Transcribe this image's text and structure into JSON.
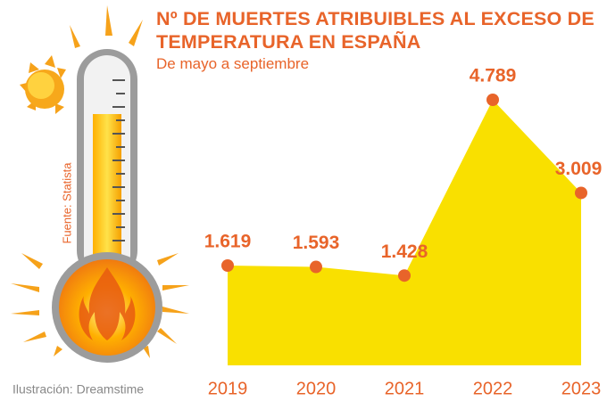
{
  "chart_data": {
    "type": "area",
    "title": "Nº DE MUERTES ATRIBUIBLES AL EXCESO DE TEMPERATURA EN ESPAÑA",
    "subtitle": "De mayo a septiembre",
    "source": "Fuente: Statista",
    "credit": "Ilustración: Dreamstime",
    "categories": [
      "2019",
      "2020",
      "2021",
      "2022",
      "2023"
    ],
    "values": [
      1619,
      1593,
      1428,
      4789,
      3009
    ],
    "value_labels": [
      "1.619",
      "1.593",
      "1.428",
      "4.789",
      "3.009"
    ],
    "color": "#f9e000",
    "marker_color": "#e8642a"
  }
}
